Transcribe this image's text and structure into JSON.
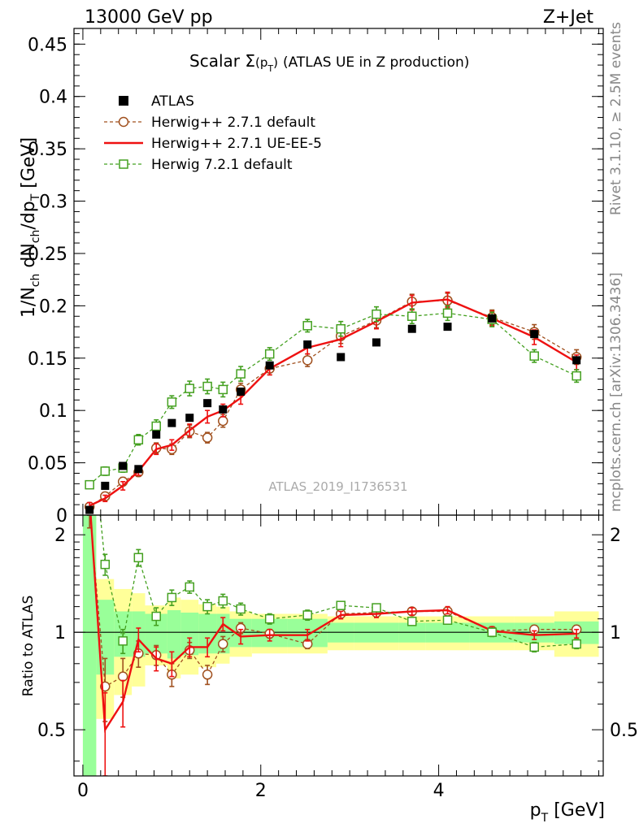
{
  "header": {
    "left": "13000 GeV pp",
    "right": "Z+Jet"
  },
  "side": {
    "top": "Rivet 3.1.10, ≥ 2.5M events",
    "bottom": "mcplots.cern.ch [arXiv:1306.3436]"
  },
  "watermark": "ATLAS_2019_I1736531",
  "axes": {
    "ylabel_main": "1/N_ch dN_ch/dp_T [GeV]",
    "ylabel_ratio": "Ratio to ATLAS",
    "xlabel": "p_T [GeV]"
  },
  "chart_data": {
    "type": "scatter",
    "title": "Scalar Σ(p_T) (ATLAS UE in Z production)",
    "title_main": "Scalar Σ",
    "title_sub": "(p",
    "title_subsub": "T",
    "title_close": ")",
    "title_tail": "(ATLAS UE in Z production)",
    "xlim": [
      -0.1,
      5.85
    ],
    "ylim": [
      0,
      0.465
    ],
    "ratio_ylim": [
      0.36,
      2.3
    ],
    "x_ticks": [
      0,
      2,
      4
    ],
    "y_ticks": [
      0,
      0.05,
      0.1,
      0.15,
      0.2,
      0.25,
      0.3,
      0.35,
      0.4,
      0.45
    ],
    "y_tick_labels": [
      "0",
      "0.05",
      "0.1",
      "0.15",
      "0.2",
      "0.25",
      "0.3",
      "0.35",
      "0.4",
      "0.45"
    ],
    "ratio_y_ticks": [
      0.5,
      1,
      2
    ],
    "ratio_y_tick_labels": [
      "0.5",
      "1",
      "2"
    ],
    "x": [
      0.075,
      0.25,
      0.45,
      0.625,
      0.825,
      1.0,
      1.2,
      1.4,
      1.575,
      1.775,
      2.1,
      2.525,
      2.9,
      3.3,
      3.7,
      4.1,
      4.6,
      5.075,
      5.55
    ],
    "bin_edges": [
      0,
      0.15,
      0.35,
      0.55,
      0.7,
      0.95,
      1.1,
      1.3,
      1.5,
      1.65,
      1.9,
      2.3,
      2.75,
      3.05,
      3.55,
      3.85,
      4.35,
      4.85,
      5.3,
      5.8
    ],
    "series": [
      {
        "name": "ATLAS",
        "style": "data",
        "color": "#000000",
        "values": [
          0.005,
          0.028,
          0.047,
          0.044,
          0.077,
          0.088,
          0.093,
          0.107,
          0.101,
          0.118,
          0.143,
          0.163,
          0.151,
          0.165,
          0.178,
          0.18,
          0.188,
          0.173,
          0.148
        ],
        "band_inner": [
          2.3,
          0.26,
          0.16,
          0.16,
          0.14,
          0.17,
          0.15,
          0.14,
          0.14,
          0.1,
          0.1,
          0.1,
          0.07,
          0.07,
          0.07,
          0.07,
          0.07,
          0.07,
          0.08
        ],
        "band_outer": [
          2.3,
          0.46,
          0.36,
          0.32,
          0.21,
          0.28,
          0.26,
          0.22,
          0.2,
          0.16,
          0.14,
          0.14,
          0.12,
          0.12,
          0.12,
          0.12,
          0.12,
          0.12,
          0.16
        ]
      },
      {
        "name": "Herwig++ 2.7.1 default",
        "style": "circle-dashed",
        "color": "#a0501e",
        "values": [
          0.008,
          0.018,
          0.032,
          0.041,
          0.064,
          0.063,
          0.08,
          0.074,
          0.09,
          0.12,
          0.14,
          0.148,
          0.171,
          0.186,
          0.204,
          0.205,
          0.189,
          0.175,
          0.151
        ],
        "errors": [
          0.003,
          0.003,
          0.004,
          0.004,
          0.005,
          0.005,
          0.006,
          0.005,
          0.006,
          0.006,
          0.006,
          0.006,
          0.007,
          0.007,
          0.007,
          0.007,
          0.007,
          0.007,
          0.007
        ],
        "ratio": [
          2.4,
          0.68,
          0.73,
          0.86,
          0.85,
          0.74,
          0.88,
          0.74,
          0.92,
          1.03,
          0.99,
          0.92,
          1.14,
          1.15,
          1.16,
          1.16,
          1.01,
          1.02,
          1.02
        ],
        "ratio_errors": [
          0.3,
          0.15,
          0.1,
          0.08,
          0.06,
          0.06,
          0.05,
          0.05,
          0.05,
          0.04,
          0.03,
          0.03,
          0.03,
          0.03,
          0.03,
          0.03,
          0.03,
          0.03,
          0.03
        ]
      },
      {
        "name": "Herwig++ 2.7.1 UE-EE-5",
        "style": "line",
        "color": "#ee1111",
        "values": [
          0.009,
          0.016,
          0.028,
          0.042,
          0.063,
          0.067,
          0.081,
          0.094,
          0.1,
          0.112,
          0.14,
          0.16,
          0.168,
          0.185,
          0.203,
          0.206,
          0.188,
          0.17,
          0.146
        ],
        "errors": [
          0.003,
          0.003,
          0.004,
          0.004,
          0.005,
          0.005,
          0.006,
          0.006,
          0.006,
          0.006,
          0.006,
          0.006,
          0.007,
          0.007,
          0.007,
          0.007,
          0.007,
          0.007,
          0.007
        ],
        "ratio": [
          2.6,
          0.5,
          0.61,
          0.95,
          0.83,
          0.8,
          0.9,
          0.9,
          1.06,
          0.97,
          0.98,
          0.98,
          1.13,
          1.14,
          1.16,
          1.17,
          1.01,
          0.98,
          0.99
        ],
        "ratio_errors": [
          0.3,
          0.15,
          0.1,
          0.08,
          0.07,
          0.07,
          0.06,
          0.06,
          0.05,
          0.05,
          0.04,
          0.04,
          0.03,
          0.03,
          0.03,
          0.03,
          0.03,
          0.03,
          0.03
        ]
      },
      {
        "name": "Herwig 7.2.1 default",
        "style": "square-dashed",
        "color": "#44a020",
        "values": [
          0.029,
          0.042,
          0.045,
          0.072,
          0.085,
          0.108,
          0.121,
          0.123,
          0.12,
          0.135,
          0.154,
          0.181,
          0.178,
          0.192,
          0.19,
          0.193,
          0.187,
          0.152,
          0.133
        ],
        "errors": [
          0.003,
          0.004,
          0.004,
          0.005,
          0.006,
          0.006,
          0.007,
          0.007,
          0.007,
          0.007,
          0.006,
          0.006,
          0.007,
          0.007,
          0.007,
          0.007,
          0.007,
          0.006,
          0.006
        ],
        "ratio": [
          5.0,
          1.62,
          0.94,
          1.7,
          1.12,
          1.28,
          1.38,
          1.2,
          1.25,
          1.18,
          1.1,
          1.13,
          1.21,
          1.19,
          1.08,
          1.09,
          1.0,
          0.9,
          0.92
        ],
        "ratio_errors": [
          0.4,
          0.12,
          0.08,
          0.1,
          0.07,
          0.07,
          0.06,
          0.06,
          0.06,
          0.05,
          0.04,
          0.04,
          0.03,
          0.03,
          0.03,
          0.03,
          0.03,
          0.03,
          0.03
        ]
      }
    ],
    "band_colors": {
      "inner": "#99ff99",
      "outer": "#ffff99"
    }
  }
}
